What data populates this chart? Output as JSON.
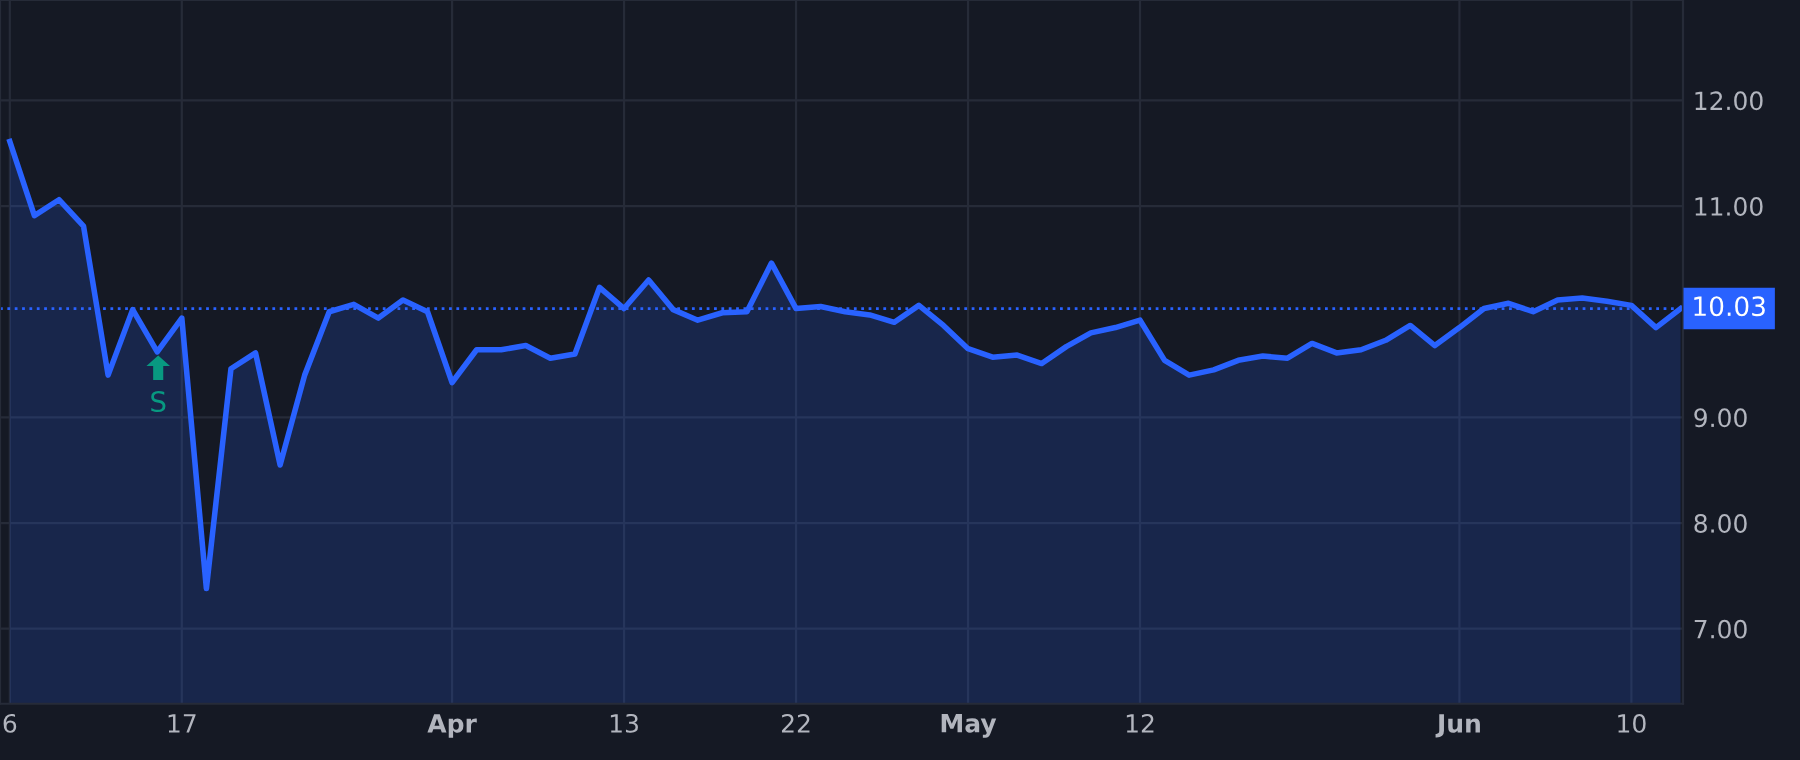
{
  "chart_data": {
    "type": "area",
    "categories": [
      "6",
      null,
      null,
      null,
      null,
      null,
      null,
      "17",
      null,
      null,
      null,
      null,
      null,
      null,
      null,
      null,
      null,
      null,
      "Apr",
      null,
      null,
      null,
      null,
      null,
      null,
      "13",
      null,
      null,
      null,
      null,
      null,
      null,
      "22",
      null,
      null,
      null,
      null,
      null,
      null,
      "May",
      null,
      null,
      null,
      null,
      null,
      null,
      "12",
      null,
      null,
      null,
      null,
      null,
      null,
      null,
      null,
      null,
      null,
      null,
      null,
      "Jun",
      null,
      null,
      null,
      null,
      null,
      null,
      "10",
      null,
      null
    ],
    "series": [
      {
        "color": "#2962ff",
        "values": [
          11.61,
          10.91,
          11.06,
          10.81,
          9.4,
          10.02,
          9.62,
          9.94,
          7.38,
          9.46,
          9.61,
          8.55,
          9.4,
          10.0,
          10.07,
          9.94,
          10.11,
          10.0,
          9.33,
          9.64,
          9.64,
          9.68,
          9.56,
          9.6,
          10.23,
          10.03,
          10.3,
          10.02,
          9.92,
          9.99,
          10.0,
          10.46,
          10.03,
          10.05,
          10.0,
          9.97,
          9.9,
          10.06,
          9.87,
          9.65,
          9.57,
          9.59,
          9.51,
          9.67,
          9.8,
          9.85,
          9.92,
          9.54,
          9.4,
          9.45,
          9.54,
          9.58,
          9.56,
          9.7,
          9.61,
          9.64,
          9.73,
          9.87,
          9.68,
          9.85,
          10.03,
          10.08,
          10.0,
          10.11,
          10.13,
          10.1,
          10.06,
          9.85,
          10.03
        ]
      }
    ],
    "ylim": [
      6.29,
      12.95
    ],
    "yticks": [
      {
        "value": 7,
        "label": "7.00"
      },
      {
        "value": 8,
        "label": "8.00"
      },
      {
        "value": 9,
        "label": "9.00"
      },
      {
        "value": 11,
        "label": "11.00"
      },
      {
        "value": 12,
        "label": "12.00"
      }
    ],
    "ref_lines": [
      {
        "axis": "y",
        "value": 10.03,
        "label": "10.03",
        "color": "#2962ff",
        "line_style": "dotted"
      }
    ],
    "annotations": [
      "S"
    ],
    "grid": true
  }
}
